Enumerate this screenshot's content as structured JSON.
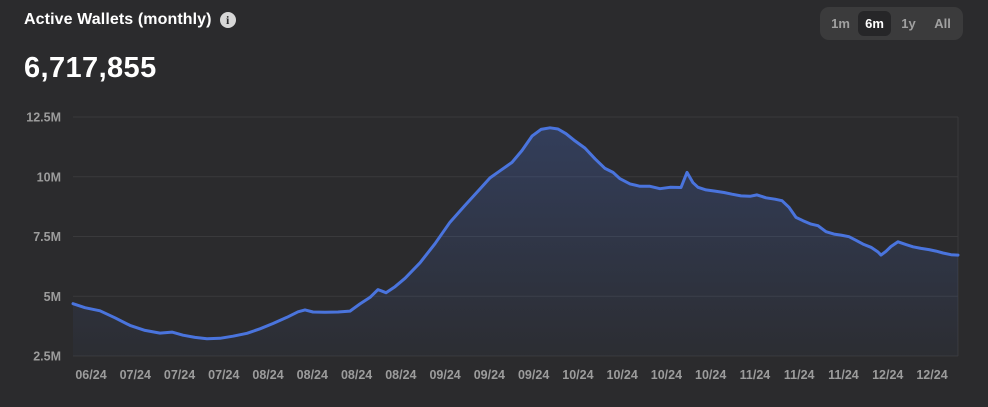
{
  "header": {
    "title": "Active Wallets (monthly)",
    "info_icon": "i",
    "value": "6,717,855"
  },
  "range_selector": {
    "options": [
      {
        "label": "1m",
        "selected": false
      },
      {
        "label": "6m",
        "selected": true
      },
      {
        "label": "1y",
        "selected": false
      },
      {
        "label": "All",
        "selected": false
      }
    ]
  },
  "colors": {
    "background": "#2b2b2d",
    "line": "#4a74dd",
    "fill_top": "rgba(74,116,221,0.26)",
    "fill_bottom": "rgba(74,116,221,0.03)",
    "grid": "#3a3a3c",
    "axis_text": "#9c9c9c"
  },
  "chart_data": {
    "type": "area",
    "title": "Active Wallets (monthly)",
    "current_value": 6717855,
    "unit": "wallets",
    "value_scale": "millions",
    "legend": "none",
    "grid": "horizontal",
    "ylim_m": [
      2.5,
      13.3
    ],
    "y_tick_values_m": [
      2.5,
      5,
      7.5,
      10,
      12.5
    ],
    "y_tick_labels": [
      "2.5M",
      "5M",
      "7.5M",
      "10M",
      "12.5M"
    ],
    "x_ticks": [
      "06/24",
      "07/24",
      "07/24",
      "07/24",
      "08/24",
      "08/24",
      "08/24",
      "08/24",
      "09/24",
      "09/24",
      "09/24",
      "10/24",
      "10/24",
      "10/24",
      "10/24",
      "11/24",
      "11/24",
      "11/24",
      "12/24",
      "12/24"
    ],
    "points": [
      [
        0.0,
        4.69
      ],
      [
        0.0136,
        4.52
      ],
      [
        0.0305,
        4.39
      ],
      [
        0.0475,
        4.1
      ],
      [
        0.0644,
        3.78
      ],
      [
        0.0814,
        3.57
      ],
      [
        0.0983,
        3.46
      ],
      [
        0.1119,
        3.5
      ],
      [
        0.1243,
        3.37
      ],
      [
        0.1379,
        3.28
      ],
      [
        0.1514,
        3.22
      ],
      [
        0.1661,
        3.24
      ],
      [
        0.1808,
        3.33
      ],
      [
        0.1966,
        3.45
      ],
      [
        0.2113,
        3.64
      ],
      [
        0.226,
        3.86
      ],
      [
        0.2418,
        4.12
      ],
      [
        0.2542,
        4.35
      ],
      [
        0.2621,
        4.43
      ],
      [
        0.2712,
        4.34
      ],
      [
        0.2847,
        4.33
      ],
      [
        0.2994,
        4.34
      ],
      [
        0.313,
        4.38
      ],
      [
        0.3243,
        4.68
      ],
      [
        0.3356,
        4.95
      ],
      [
        0.3446,
        5.28
      ],
      [
        0.3537,
        5.15
      ],
      [
        0.3638,
        5.4
      ],
      [
        0.3751,
        5.75
      ],
      [
        0.3921,
        6.4
      ],
      [
        0.409,
        7.2
      ],
      [
        0.426,
        8.1
      ],
      [
        0.4429,
        8.8
      ],
      [
        0.4576,
        9.4
      ],
      [
        0.4712,
        9.95
      ],
      [
        0.4825,
        10.25
      ],
      [
        0.496,
        10.6
      ],
      [
        0.5073,
        11.1
      ],
      [
        0.5186,
        11.7
      ],
      [
        0.5288,
        11.98
      ],
      [
        0.539,
        12.05
      ],
      [
        0.548,
        12.0
      ],
      [
        0.5571,
        11.8
      ],
      [
        0.5672,
        11.5
      ],
      [
        0.5785,
        11.2
      ],
      [
        0.5898,
        10.75
      ],
      [
        0.6011,
        10.35
      ],
      [
        0.6102,
        10.18
      ],
      [
        0.6181,
        9.92
      ],
      [
        0.6294,
        9.7
      ],
      [
        0.6407,
        9.6
      ],
      [
        0.652,
        9.6
      ],
      [
        0.6633,
        9.5
      ],
      [
        0.6746,
        9.56
      ],
      [
        0.687,
        9.55
      ],
      [
        0.6938,
        10.18
      ],
      [
        0.7006,
        9.75
      ],
      [
        0.7062,
        9.56
      ],
      [
        0.7153,
        9.45
      ],
      [
        0.7254,
        9.4
      ],
      [
        0.7356,
        9.34
      ],
      [
        0.7446,
        9.27
      ],
      [
        0.7548,
        9.2
      ],
      [
        0.765,
        9.18
      ],
      [
        0.7729,
        9.24
      ],
      [
        0.7831,
        9.12
      ],
      [
        0.7932,
        9.06
      ],
      [
        0.8011,
        9.0
      ],
      [
        0.809,
        8.72
      ],
      [
        0.8169,
        8.3
      ],
      [
        0.8249,
        8.16
      ],
      [
        0.8339,
        8.02
      ],
      [
        0.8418,
        7.95
      ],
      [
        0.8508,
        7.7
      ],
      [
        0.8599,
        7.6
      ],
      [
        0.8678,
        7.56
      ],
      [
        0.8768,
        7.49
      ],
      [
        0.8847,
        7.34
      ],
      [
        0.8926,
        7.18
      ],
      [
        0.9017,
        7.05
      ],
      [
        0.9096,
        6.85
      ],
      [
        0.913,
        6.72
      ],
      [
        0.9186,
        6.88
      ],
      [
        0.9243,
        7.08
      ],
      [
        0.9322,
        7.28
      ],
      [
        0.9412,
        7.16
      ],
      [
        0.9492,
        7.07
      ],
      [
        0.9582,
        7.0
      ],
      [
        0.9672,
        6.95
      ],
      [
        0.9751,
        6.89
      ],
      [
        0.9831,
        6.81
      ],
      [
        0.9921,
        6.74
      ],
      [
        1.0,
        6.72
      ]
    ]
  }
}
